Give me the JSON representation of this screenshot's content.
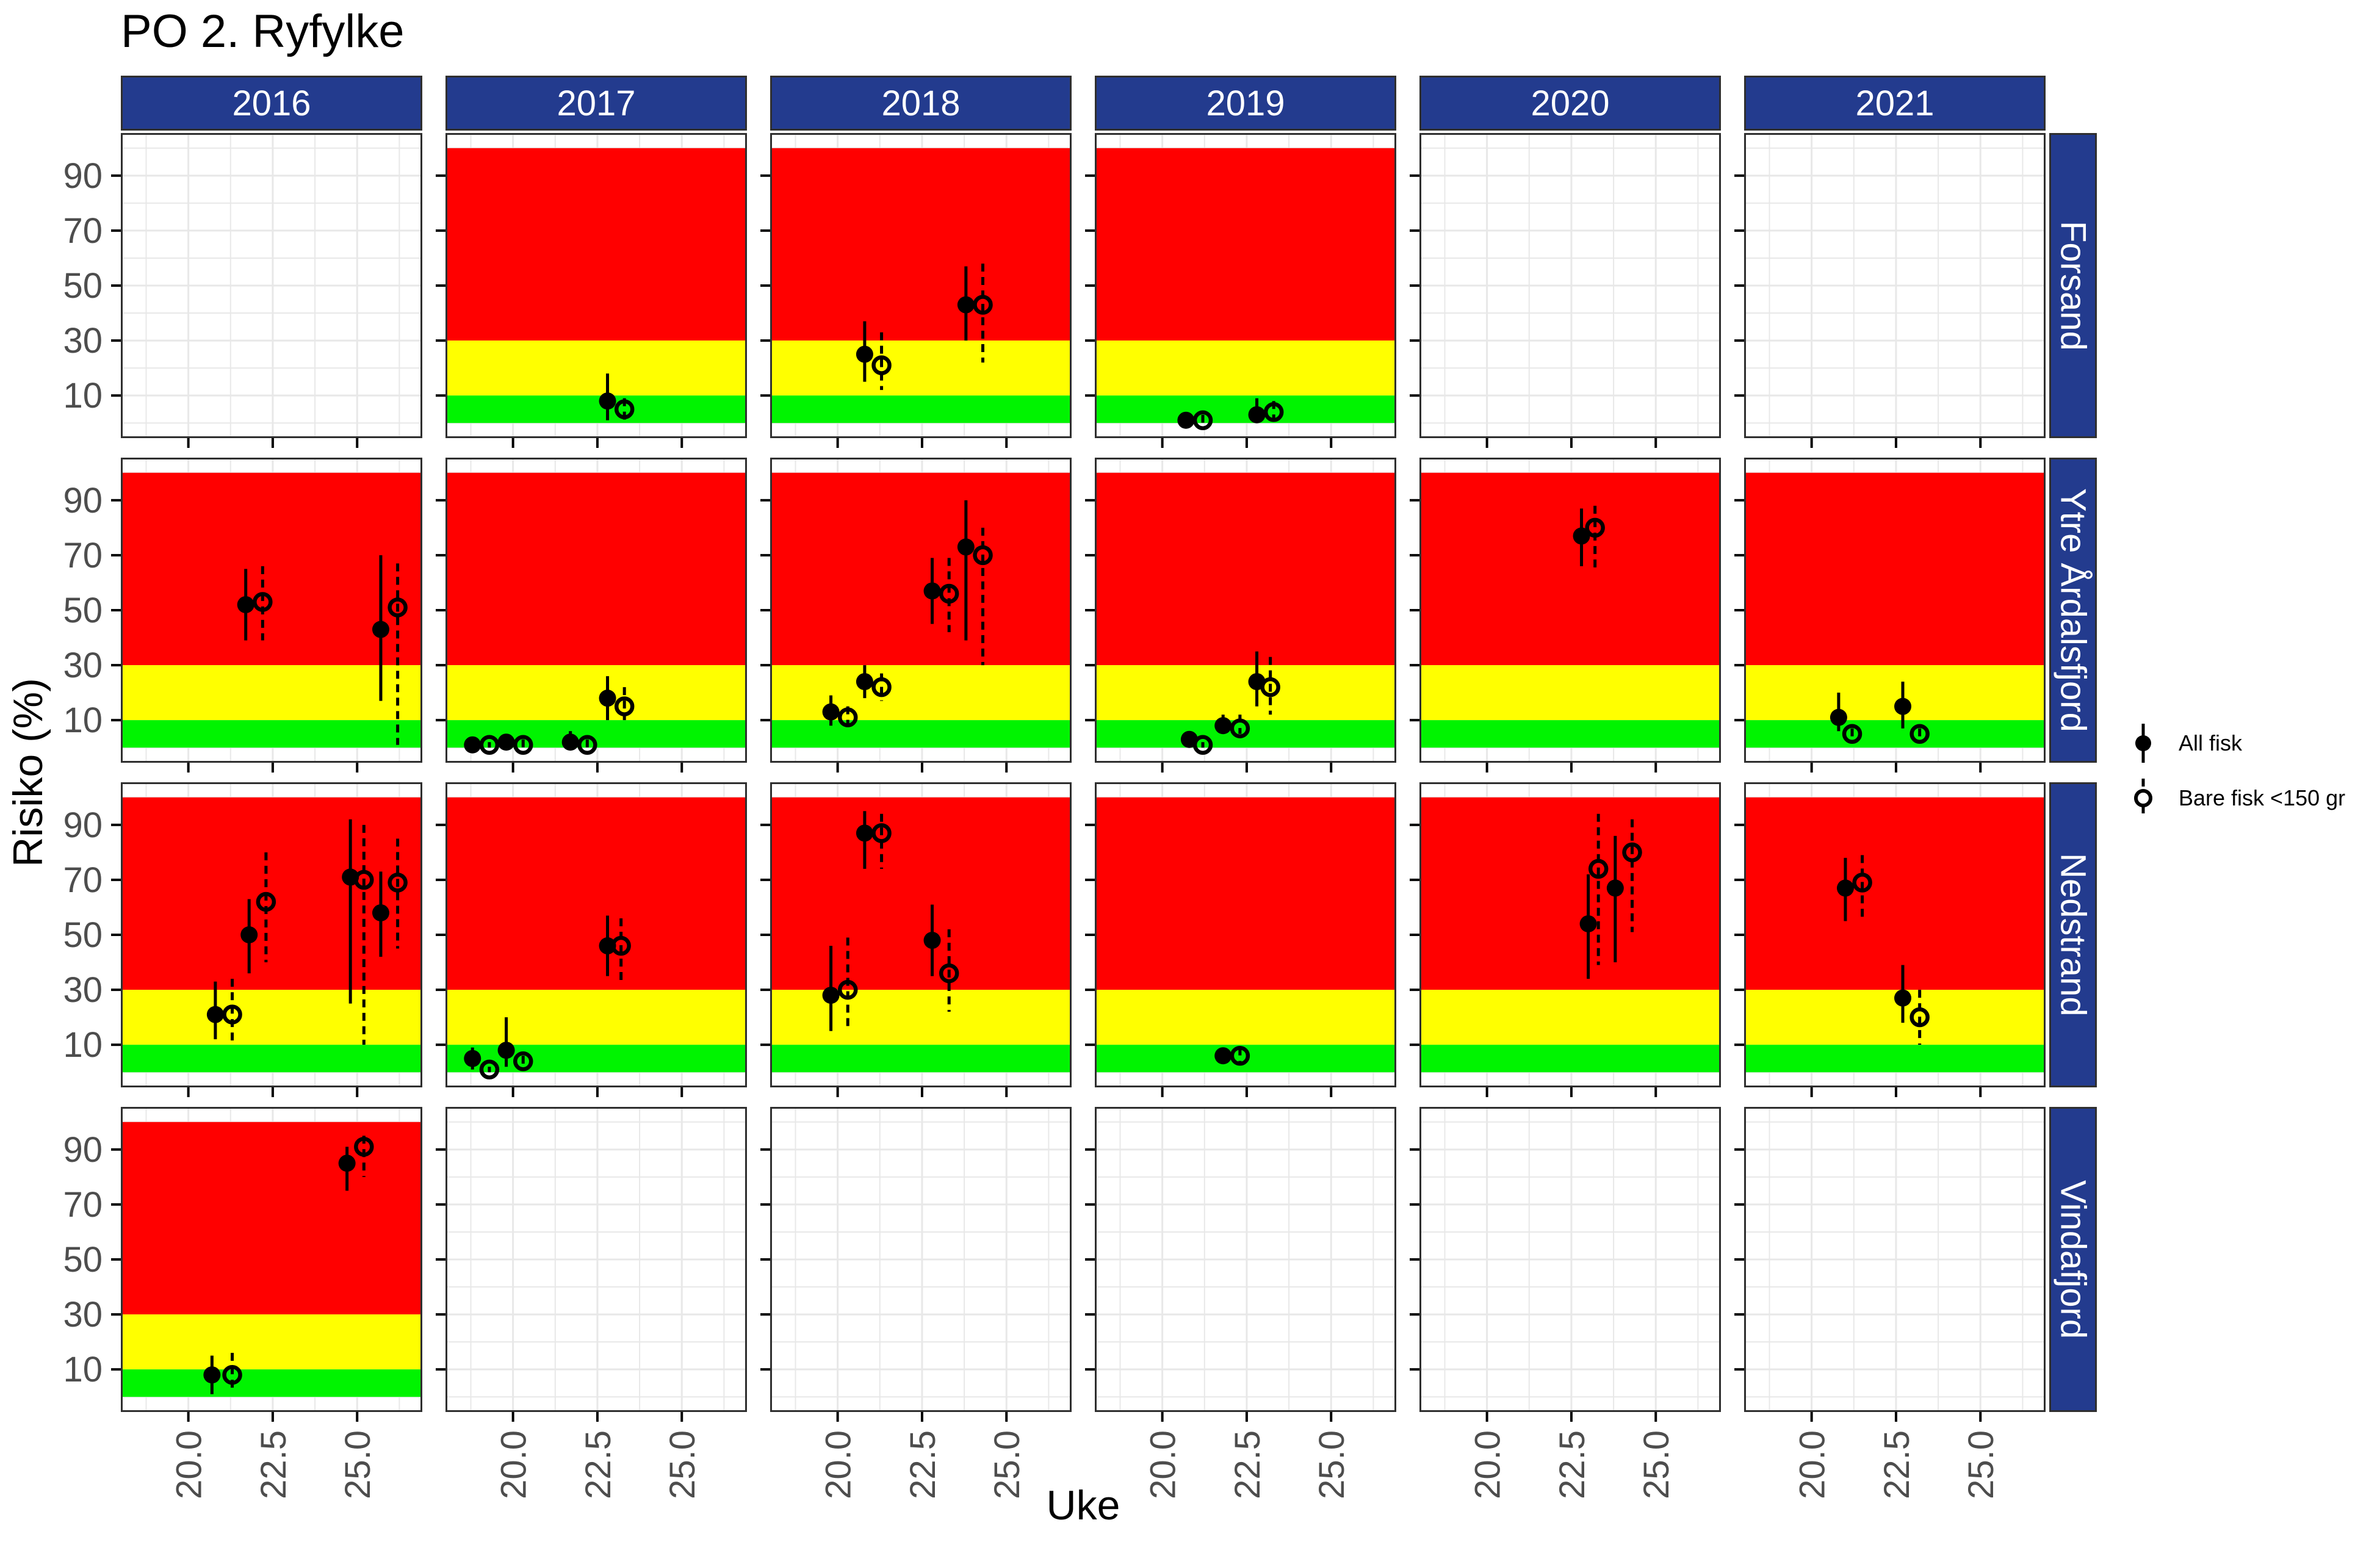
{
  "title": "PO 2. Ryfylke",
  "x_axis": {
    "label": "Uke",
    "tick_labels": [
      "20.0",
      "22.5",
      "25.0"
    ],
    "tick_values": [
      20,
      22.5,
      25
    ],
    "minor_values": [
      18.75,
      21.25,
      23.75,
      26.25
    ],
    "domain": [
      18.0,
      26.93
    ]
  },
  "y_axis": {
    "label": "Risiko (%)",
    "tick_labels": [
      "10",
      "30",
      "50",
      "70",
      "90"
    ],
    "tick_values": [
      10,
      30,
      50,
      70,
      90
    ],
    "minor_values": [
      0,
      20,
      40,
      60,
      80,
      100
    ],
    "domain": [
      -5.5,
      105.5
    ]
  },
  "facets": {
    "columns": [
      "2016",
      "2017",
      "2018",
      "2019",
      "2020",
      "2021"
    ],
    "rows": [
      "Forsand",
      "Ytre Årdalsfjord",
      "Nedstrand",
      "Vindafjord"
    ]
  },
  "legend": {
    "items": [
      {
        "label": "All fisk",
        "marker": "solid-point-solid-line"
      },
      {
        "label": "Bare fisk <150 gr",
        "marker": "open-point-dashed-line"
      }
    ]
  },
  "colors": {
    "strip_fill": "#233B8E",
    "strip_text": "#FFFFFF",
    "band_red": "#FF0000",
    "band_yellow": "#FFFF00",
    "band_green": "#00F400",
    "grid": "#E8E8E8",
    "panel_border": "#2F2F2F",
    "tick": "#000000",
    "tick_label": "#4D4D4D",
    "point": "#000000"
  },
  "chart_data": {
    "type": "pointrange-facets",
    "bands": {
      "red": [
        30,
        100
      ],
      "yellow": [
        10,
        30
      ],
      "green": [
        0,
        10
      ]
    },
    "series_key": {
      "all": "All fisk",
      "bare": "Bare fisk <150 gr"
    },
    "panels": [
      {
        "row": "Forsand",
        "col": "2016",
        "bands": false,
        "points": []
      },
      {
        "row": "Forsand",
        "col": "2017",
        "bands": true,
        "points": [
          {
            "s": "all",
            "w": 22.8,
            "v": 8,
            "lo": 1,
            "hi": 18
          },
          {
            "s": "bare",
            "w": 23.3,
            "v": 5,
            "lo": 1,
            "hi": 9
          }
        ]
      },
      {
        "row": "Forsand",
        "col": "2018",
        "bands": true,
        "points": [
          {
            "s": "all",
            "w": 20.8,
            "v": 25,
            "lo": 15,
            "hi": 37
          },
          {
            "s": "bare",
            "w": 21.3,
            "v": 21,
            "lo": 12,
            "hi": 33
          },
          {
            "s": "all",
            "w": 23.8,
            "v": 43,
            "lo": 30,
            "hi": 57
          },
          {
            "s": "bare",
            "w": 24.3,
            "v": 43,
            "lo": 22,
            "hi": 58
          }
        ]
      },
      {
        "row": "Forsand",
        "col": "2019",
        "bands": true,
        "points": [
          {
            "s": "all",
            "w": 20.7,
            "v": 1,
            "lo": 0,
            "hi": 3
          },
          {
            "s": "bare",
            "w": 21.2,
            "v": 1,
            "lo": 0,
            "hi": 3
          },
          {
            "s": "all",
            "w": 22.8,
            "v": 3,
            "lo": 0,
            "hi": 9
          },
          {
            "s": "bare",
            "w": 23.3,
            "v": 4,
            "lo": 1,
            "hi": 8
          }
        ]
      },
      {
        "row": "Forsand",
        "col": "2020",
        "bands": false,
        "points": []
      },
      {
        "row": "Forsand",
        "col": "2021",
        "bands": false,
        "points": []
      },
      {
        "row": "Ytre Årdalsfjord",
        "col": "2016",
        "bands": true,
        "points": [
          {
            "s": "all",
            "w": 21.7,
            "v": 52,
            "lo": 39,
            "hi": 65
          },
          {
            "s": "bare",
            "w": 22.2,
            "v": 53,
            "lo": 39,
            "hi": 66
          },
          {
            "s": "all",
            "w": 25.7,
            "v": 43,
            "lo": 17,
            "hi": 70
          },
          {
            "s": "bare",
            "w": 26.2,
            "v": 51,
            "lo": 1,
            "hi": 67
          }
        ]
      },
      {
        "row": "Ytre Årdalsfjord",
        "col": "2017",
        "bands": true,
        "points": [
          {
            "s": "all",
            "w": 18.8,
            "v": 1,
            "lo": 0,
            "hi": 3
          },
          {
            "s": "bare",
            "w": 19.3,
            "v": 1,
            "lo": 0,
            "hi": 2
          },
          {
            "s": "all",
            "w": 19.8,
            "v": 2,
            "lo": 0,
            "hi": 5
          },
          {
            "s": "bare",
            "w": 20.3,
            "v": 1,
            "lo": 0,
            "hi": 3
          },
          {
            "s": "all",
            "w": 21.7,
            "v": 2,
            "lo": 0,
            "hi": 6
          },
          {
            "s": "bare",
            "w": 22.2,
            "v": 1,
            "lo": 0,
            "hi": 3
          },
          {
            "s": "all",
            "w": 22.8,
            "v": 18,
            "lo": 10,
            "hi": 26
          },
          {
            "s": "bare",
            "w": 23.3,
            "v": 15,
            "lo": 10,
            "hi": 22
          }
        ]
      },
      {
        "row": "Ytre Årdalsfjord",
        "col": "2018",
        "bands": true,
        "points": [
          {
            "s": "all",
            "w": 19.8,
            "v": 13,
            "lo": 8,
            "hi": 19
          },
          {
            "s": "bare",
            "w": 20.3,
            "v": 11,
            "lo": 8,
            "hi": 15
          },
          {
            "s": "all",
            "w": 20.8,
            "v": 24,
            "lo": 18,
            "hi": 30
          },
          {
            "s": "bare",
            "w": 21.3,
            "v": 22,
            "lo": 17,
            "hi": 27
          },
          {
            "s": "all",
            "w": 22.8,
            "v": 57,
            "lo": 45,
            "hi": 69
          },
          {
            "s": "bare",
            "w": 23.3,
            "v": 56,
            "lo": 42,
            "hi": 69
          },
          {
            "s": "all",
            "w": 23.8,
            "v": 73,
            "lo": 39,
            "hi": 90
          },
          {
            "s": "bare",
            "w": 24.3,
            "v": 70,
            "lo": 30,
            "hi": 80
          }
        ]
      },
      {
        "row": "Ytre Årdalsfjord",
        "col": "2019",
        "bands": true,
        "points": [
          {
            "s": "all",
            "w": 20.8,
            "v": 3,
            "lo": 1,
            "hi": 6
          },
          {
            "s": "bare",
            "w": 21.2,
            "v": 1,
            "lo": 0,
            "hi": 2
          },
          {
            "s": "all",
            "w": 21.8,
            "v": 8,
            "lo": 5,
            "hi": 12
          },
          {
            "s": "bare",
            "w": 22.3,
            "v": 7,
            "lo": 5,
            "hi": 12
          },
          {
            "s": "all",
            "w": 22.8,
            "v": 24,
            "lo": 15,
            "hi": 35
          },
          {
            "s": "bare",
            "w": 23.2,
            "v": 22,
            "lo": 12,
            "hi": 33
          }
        ]
      },
      {
        "row": "Ytre Årdalsfjord",
        "col": "2020",
        "bands": true,
        "points": [
          {
            "s": "all",
            "w": 22.8,
            "v": 77,
            "lo": 66,
            "hi": 87
          },
          {
            "s": "bare",
            "w": 23.2,
            "v": 80,
            "lo": 65,
            "hi": 88
          }
        ]
      },
      {
        "row": "Ytre Årdalsfjord",
        "col": "2021",
        "bands": true,
        "points": [
          {
            "s": "all",
            "w": 20.8,
            "v": 11,
            "lo": 6,
            "hi": 20
          },
          {
            "s": "bare",
            "w": 21.2,
            "v": 5,
            "lo": 3,
            "hi": 7
          },
          {
            "s": "all",
            "w": 22.7,
            "v": 15,
            "lo": 7,
            "hi": 24
          },
          {
            "s": "bare",
            "w": 23.2,
            "v": 5,
            "lo": 3,
            "hi": 7
          }
        ]
      },
      {
        "row": "Nedstrand",
        "col": "2016",
        "bands": true,
        "points": [
          {
            "s": "all",
            "w": 20.8,
            "v": 21,
            "lo": 12,
            "hi": 33
          },
          {
            "s": "bare",
            "w": 21.3,
            "v": 21,
            "lo": 11,
            "hi": 34
          },
          {
            "s": "all",
            "w": 21.8,
            "v": 50,
            "lo": 36,
            "hi": 63
          },
          {
            "s": "bare",
            "w": 22.3,
            "v": 62,
            "lo": 40,
            "hi": 80
          },
          {
            "s": "all",
            "w": 24.8,
            "v": 71,
            "lo": 25,
            "hi": 92
          },
          {
            "s": "bare",
            "w": 25.2,
            "v": 70,
            "lo": 10,
            "hi": 90
          },
          {
            "s": "all",
            "w": 25.7,
            "v": 58,
            "lo": 42,
            "hi": 73
          },
          {
            "s": "bare",
            "w": 26.2,
            "v": 69,
            "lo": 45,
            "hi": 85
          }
        ]
      },
      {
        "row": "Nedstrand",
        "col": "2017",
        "bands": true,
        "points": [
          {
            "s": "all",
            "w": 18.8,
            "v": 5,
            "lo": 1,
            "hi": 9
          },
          {
            "s": "bare",
            "w": 19.3,
            "v": 1,
            "lo": 0,
            "hi": 2
          },
          {
            "s": "all",
            "w": 19.8,
            "v": 8,
            "lo": 2,
            "hi": 20
          },
          {
            "s": "bare",
            "w": 20.3,
            "v": 4,
            "lo": 2,
            "hi": 6
          },
          {
            "s": "all",
            "w": 22.8,
            "v": 46,
            "lo": 35,
            "hi": 57
          },
          {
            "s": "bare",
            "w": 23.2,
            "v": 46,
            "lo": 33,
            "hi": 56
          }
        ]
      },
      {
        "row": "Nedstrand",
        "col": "2018",
        "bands": true,
        "points": [
          {
            "s": "all",
            "w": 19.8,
            "v": 28,
            "lo": 15,
            "hi": 46
          },
          {
            "s": "bare",
            "w": 20.3,
            "v": 30,
            "lo": 16,
            "hi": 49
          },
          {
            "s": "all",
            "w": 20.8,
            "v": 87,
            "lo": 74,
            "hi": 95
          },
          {
            "s": "bare",
            "w": 21.3,
            "v": 87,
            "lo": 74,
            "hi": 94
          },
          {
            "s": "all",
            "w": 22.8,
            "v": 48,
            "lo": 35,
            "hi": 61
          },
          {
            "s": "bare",
            "w": 23.3,
            "v": 36,
            "lo": 22,
            "hi": 52
          }
        ]
      },
      {
        "row": "Nedstrand",
        "col": "2019",
        "bands": true,
        "points": [
          {
            "s": "all",
            "w": 21.8,
            "v": 6,
            "lo": 3,
            "hi": 9
          },
          {
            "s": "bare",
            "w": 22.3,
            "v": 6,
            "lo": 3,
            "hi": 9
          }
        ]
      },
      {
        "row": "Nedstrand",
        "col": "2020",
        "bands": true,
        "points": [
          {
            "s": "all",
            "w": 23.0,
            "v": 54,
            "lo": 34,
            "hi": 72
          },
          {
            "s": "bare",
            "w": 23.3,
            "v": 74,
            "lo": 39,
            "hi": 94
          },
          {
            "s": "all",
            "w": 23.8,
            "v": 67,
            "lo": 40,
            "hi": 86
          },
          {
            "s": "bare",
            "w": 24.3,
            "v": 80,
            "lo": 51,
            "hi": 92
          }
        ]
      },
      {
        "row": "Nedstrand",
        "col": "2021",
        "bands": true,
        "points": [
          {
            "s": "all",
            "w": 21.0,
            "v": 67,
            "lo": 55,
            "hi": 78
          },
          {
            "s": "bare",
            "w": 21.5,
            "v": 69,
            "lo": 56,
            "hi": 79
          },
          {
            "s": "all",
            "w": 22.7,
            "v": 27,
            "lo": 18,
            "hi": 39
          },
          {
            "s": "bare",
            "w": 23.2,
            "v": 20,
            "lo": 10,
            "hi": 30
          }
        ]
      },
      {
        "row": "Vindafjord",
        "col": "2016",
        "bands": true,
        "points": [
          {
            "s": "all",
            "w": 20.7,
            "v": 8,
            "lo": 1,
            "hi": 15
          },
          {
            "s": "bare",
            "w": 21.3,
            "v": 8,
            "lo": 2,
            "hi": 16
          },
          {
            "s": "all",
            "w": 24.7,
            "v": 85,
            "lo": 75,
            "hi": 91
          },
          {
            "s": "bare",
            "w": 25.2,
            "v": 91,
            "lo": 80,
            "hi": 95
          }
        ]
      },
      {
        "row": "Vindafjord",
        "col": "2017",
        "bands": false,
        "points": []
      },
      {
        "row": "Vindafjord",
        "col": "2018",
        "bands": false,
        "points": []
      },
      {
        "row": "Vindafjord",
        "col": "2019",
        "bands": false,
        "points": []
      },
      {
        "row": "Vindafjord",
        "col": "2020",
        "bands": false,
        "points": []
      },
      {
        "row": "Vindafjord",
        "col": "2021",
        "bands": false,
        "points": []
      }
    ]
  }
}
